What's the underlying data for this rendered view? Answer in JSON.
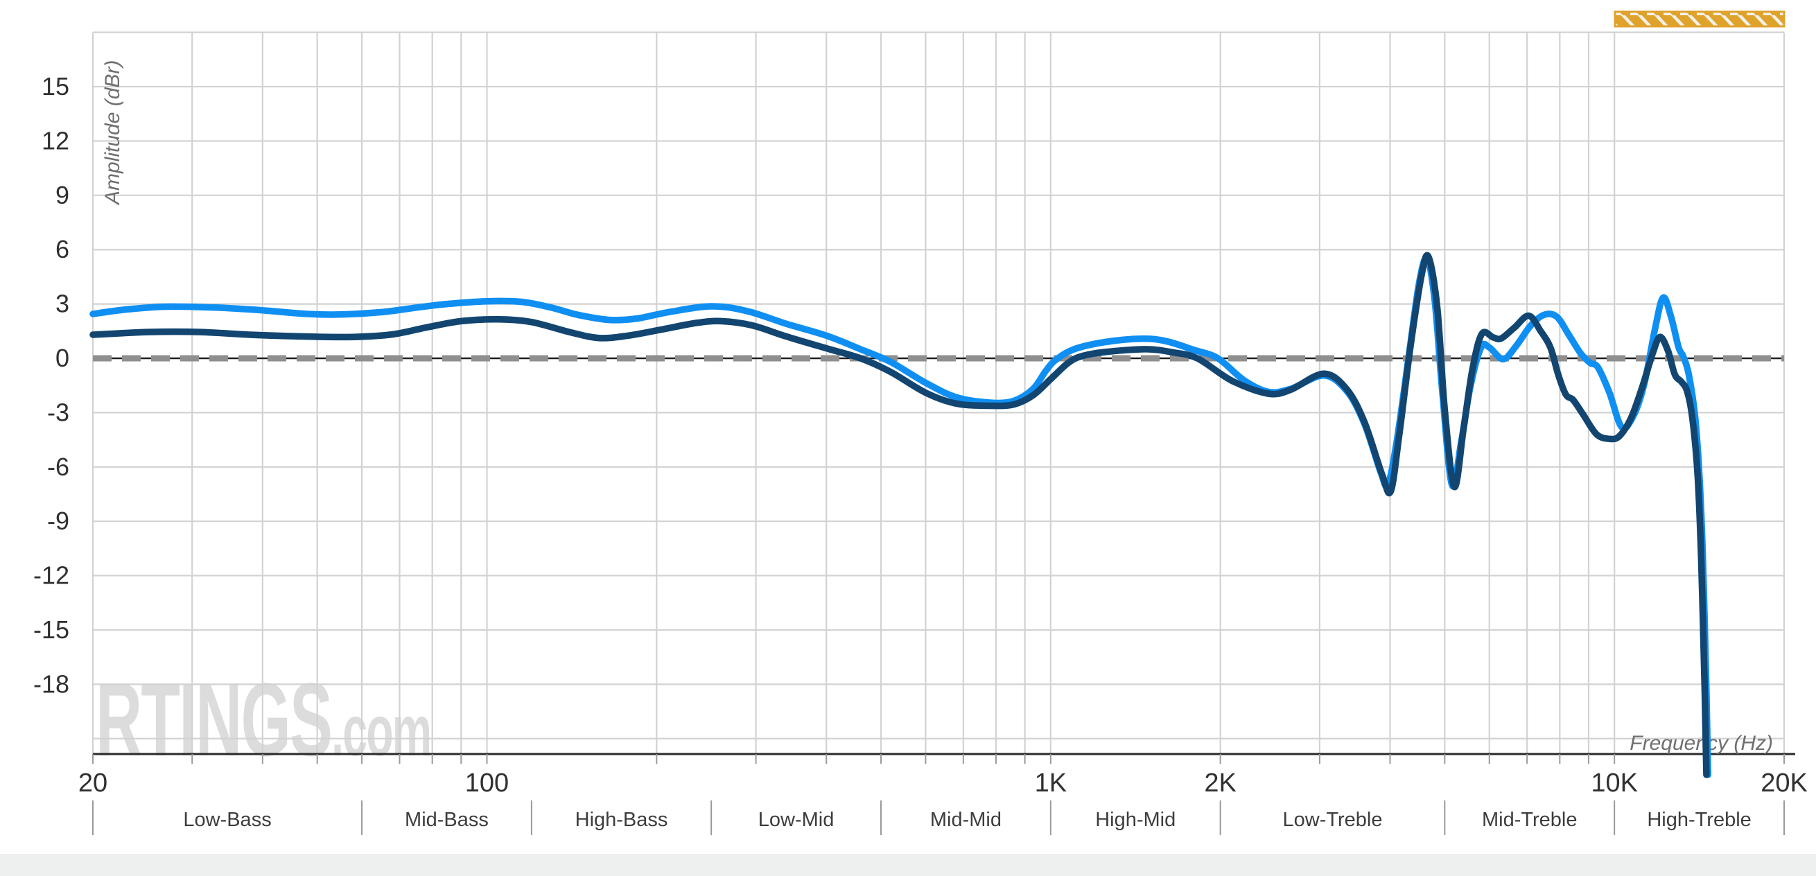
{
  "styles": {
    "background": "#ffffff",
    "gridline": "#d2d2d2",
    "axis_line": "#2a2a2a",
    "tick_mark": "#9a9a9a",
    "tick_text": "#303030",
    "band_text": "#3d3d3d",
    "band_separator": "#9a9a9a",
    "axis_title": "#6f6f6f",
    "watermark": "#dcdcdc",
    "zero_dash": "#8f8f8f",
    "zero_line": "#1f1f1f",
    "hatch_orange": "#dfa32c",
    "hatch_cream": "#f3f0e9",
    "footer_strip": "#eef0f0"
  },
  "watermark": {
    "brand": "RTINGS",
    "suffix": ".com"
  },
  "chart_data": {
    "type": "line",
    "x_scale": "log",
    "x_range": [
      20,
      20000
    ],
    "y_range": [
      -21.85,
      18.05
    ],
    "x_axis_label": "Frequency (Hz)",
    "y_axis_label": "Amplitude (dBr)",
    "grid": true,
    "y_gridline_step": 3,
    "y_tick_labels": [
      15,
      12,
      9,
      6,
      3,
      0,
      -3,
      -6,
      -9,
      -12,
      -15,
      -18
    ],
    "x_gridlines": [
      20,
      30,
      40,
      50,
      60,
      70,
      80,
      90,
      100,
      200,
      300,
      400,
      500,
      600,
      700,
      800,
      900,
      1000,
      2000,
      3000,
      4000,
      5000,
      6000,
      7000,
      8000,
      9000,
      10000,
      20000
    ],
    "x_tick_labels": [
      {
        "f": 20,
        "label": "20"
      },
      {
        "f": 100,
        "label": "100"
      },
      {
        "f": 1000,
        "label": "1K"
      },
      {
        "f": 2000,
        "label": "2K"
      },
      {
        "f": 10000,
        "label": "10K"
      },
      {
        "f": 20000,
        "label": "20K"
      }
    ],
    "zero_reference_db": 0,
    "frequency_bands": [
      {
        "label": "Low-Bass",
        "from": 20,
        "to": 60
      },
      {
        "label": "Mid-Bass",
        "from": 60,
        "to": 120
      },
      {
        "label": "High-Bass",
        "from": 120,
        "to": 250
      },
      {
        "label": "Low-Mid",
        "from": 250,
        "to": 500
      },
      {
        "label": "Mid-Mid",
        "from": 500,
        "to": 1000
      },
      {
        "label": "High-Mid",
        "from": 1000,
        "to": 2000
      },
      {
        "label": "Low-Treble",
        "from": 2000,
        "to": 5000
      },
      {
        "label": "Mid-Treble",
        "from": 5000,
        "to": 10000
      },
      {
        "label": "High-Treble",
        "from": 10000,
        "to": 20000
      }
    ],
    "unreliable_region_marker": {
      "from": 10000,
      "to": 20000
    },
    "series": [
      {
        "name": "light-blue-curve",
        "color": "#0f8ff2",
        "points": [
          [
            20,
            2.45
          ],
          [
            23,
            2.7
          ],
          [
            27,
            2.85
          ],
          [
            33,
            2.8
          ],
          [
            40,
            2.65
          ],
          [
            48,
            2.45
          ],
          [
            55,
            2.42
          ],
          [
            65,
            2.55
          ],
          [
            75,
            2.8
          ],
          [
            85,
            3.0
          ],
          [
            100,
            3.15
          ],
          [
            115,
            3.12
          ],
          [
            130,
            2.8
          ],
          [
            145,
            2.4
          ],
          [
            165,
            2.12
          ],
          [
            185,
            2.2
          ],
          [
            210,
            2.55
          ],
          [
            250,
            2.87
          ],
          [
            290,
            2.6
          ],
          [
            340,
            1.9
          ],
          [
            400,
            1.25
          ],
          [
            460,
            0.5
          ],
          [
            520,
            -0.2
          ],
          [
            600,
            -1.35
          ],
          [
            680,
            -2.15
          ],
          [
            780,
            -2.45
          ],
          [
            860,
            -2.35
          ],
          [
            930,
            -1.7
          ],
          [
            980,
            -0.7
          ],
          [
            1020,
            -0.1
          ],
          [
            1100,
            0.5
          ],
          [
            1250,
            0.9
          ],
          [
            1450,
            1.08
          ],
          [
            1600,
            0.95
          ],
          [
            1800,
            0.45
          ],
          [
            1980,
            0
          ],
          [
            2200,
            -1.2
          ],
          [
            2430,
            -1.85
          ],
          [
            2660,
            -1.7
          ],
          [
            3050,
            -0.95
          ],
          [
            3350,
            -1.8
          ],
          [
            3600,
            -3.6
          ],
          [
            3850,
            -6.3
          ],
          [
            3960,
            -7.0
          ],
          [
            4100,
            -4.8
          ],
          [
            4300,
            -0.3
          ],
          [
            4500,
            4.1
          ],
          [
            4650,
            5.5
          ],
          [
            4800,
            3.2
          ],
          [
            4950,
            -1.8
          ],
          [
            5150,
            -7.0
          ],
          [
            5350,
            -4.6
          ],
          [
            5550,
            -1.6
          ],
          [
            5800,
            0.6
          ],
          [
            6000,
            0.6
          ],
          [
            6350,
            -0.05
          ],
          [
            6700,
            0.7
          ],
          [
            7100,
            1.8
          ],
          [
            7500,
            2.4
          ],
          [
            7900,
            2.3
          ],
          [
            8300,
            1.3
          ],
          [
            8700,
            0.3
          ],
          [
            9050,
            -0.25
          ],
          [
            9350,
            -0.5
          ],
          [
            9800,
            -1.9
          ],
          [
            10300,
            -3.8
          ],
          [
            10800,
            -3.2
          ],
          [
            11300,
            -1.4
          ],
          [
            11800,
            1.6
          ],
          [
            12200,
            3.35
          ],
          [
            12600,
            2.3
          ],
          [
            13000,
            0.6
          ],
          [
            13250,
            0.1
          ],
          [
            13550,
            -0.9
          ],
          [
            13900,
            -3.2
          ],
          [
            14150,
            -6.5
          ],
          [
            14350,
            -11
          ],
          [
            14550,
            -18
          ],
          [
            14660,
            -23
          ]
        ]
      },
      {
        "name": "dark-navy-curve",
        "color": "#124570",
        "points": [
          [
            20,
            1.3
          ],
          [
            25,
            1.45
          ],
          [
            31,
            1.45
          ],
          [
            38,
            1.3
          ],
          [
            48,
            1.2
          ],
          [
            58,
            1.18
          ],
          [
            68,
            1.32
          ],
          [
            78,
            1.7
          ],
          [
            90,
            2.05
          ],
          [
            105,
            2.15
          ],
          [
            120,
            2.0
          ],
          [
            140,
            1.45
          ],
          [
            158,
            1.12
          ],
          [
            178,
            1.25
          ],
          [
            205,
            1.6
          ],
          [
            235,
            1.95
          ],
          [
            260,
            2.05
          ],
          [
            295,
            1.82
          ],
          [
            340,
            1.2
          ],
          [
            400,
            0.55
          ],
          [
            460,
            0
          ],
          [
            520,
            -0.75
          ],
          [
            600,
            -1.9
          ],
          [
            680,
            -2.5
          ],
          [
            780,
            -2.62
          ],
          [
            860,
            -2.55
          ],
          [
            930,
            -2.05
          ],
          [
            1000,
            -1.15
          ],
          [
            1070,
            -0.3
          ],
          [
            1130,
            0.1
          ],
          [
            1250,
            0.35
          ],
          [
            1480,
            0.5
          ],
          [
            1650,
            0.32
          ],
          [
            1820,
            0
          ],
          [
            2100,
            -1.25
          ],
          [
            2430,
            -1.95
          ],
          [
            2660,
            -1.75
          ],
          [
            3050,
            -0.85
          ],
          [
            3350,
            -1.7
          ],
          [
            3600,
            -3.5
          ],
          [
            3870,
            -6.4
          ],
          [
            4010,
            -7.35
          ],
          [
            4150,
            -4.3
          ],
          [
            4350,
            0.7
          ],
          [
            4550,
            4.6
          ],
          [
            4680,
            5.6
          ],
          [
            4850,
            2.8
          ],
          [
            5000,
            -2.8
          ],
          [
            5200,
            -7.1
          ],
          [
            5400,
            -3.9
          ],
          [
            5600,
            -0.6
          ],
          [
            5820,
            1.35
          ],
          [
            6100,
            1.15
          ],
          [
            6300,
            1.1
          ],
          [
            6650,
            1.7
          ],
          [
            7050,
            2.35
          ],
          [
            7400,
            1.5
          ],
          [
            7700,
            0.6
          ],
          [
            7950,
            -0.9
          ],
          [
            8200,
            -2.0
          ],
          [
            8450,
            -2.3
          ],
          [
            8800,
            -3.1
          ],
          [
            9300,
            -4.2
          ],
          [
            9800,
            -4.45
          ],
          [
            10200,
            -4.3
          ],
          [
            10700,
            -3.3
          ],
          [
            11200,
            -1.6
          ],
          [
            11700,
            0.3
          ],
          [
            12050,
            1.18
          ],
          [
            12450,
            0.4
          ],
          [
            12800,
            -0.9
          ],
          [
            13150,
            -1.3
          ],
          [
            13450,
            -1.8
          ],
          [
            13750,
            -3.3
          ],
          [
            14050,
            -6.5
          ],
          [
            14250,
            -11
          ],
          [
            14450,
            -18
          ],
          [
            14560,
            -23
          ]
        ]
      }
    ]
  }
}
